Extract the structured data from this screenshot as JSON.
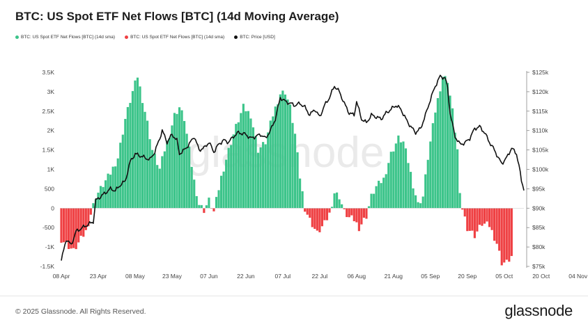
{
  "chart_data": {
    "type": "bar+line",
    "title": "BTC: US Spot ETF Net Flows [BTC] (14d Moving Average)",
    "legend": [
      "BTC: US Spot ETF Net Flows [BTC] (14d sma)",
      "BTC: US Spot ETF Net Flows [BTC] (14d sma)",
      "BTC: Price [USD]"
    ],
    "colors": {
      "positive": "#3cc48a",
      "negative": "#ef4043",
      "price": "#111111"
    },
    "x_ticks": [
      "08 Apr",
      "23 Apr",
      "08 May",
      "23 May",
      "07 Jun",
      "22 Jun",
      "07 Jul",
      "22 Jul",
      "06 Aug",
      "21 Aug",
      "05 Sep",
      "20 Sep",
      "05 Oct",
      "20 Oct",
      "04 Nov"
    ],
    "y_left": {
      "ticks": [
        "3.5K",
        "3K",
        "2.5K",
        "2K",
        "1.5K",
        "1K",
        "500",
        "0",
        "-500",
        "-1K",
        "-1.5K"
      ],
      "ylim": [
        -1500,
        3500
      ]
    },
    "y_right": {
      "ticks": [
        "$125k",
        "$120k",
        "$115k",
        "$110k",
        "$105k",
        "$100k",
        "$95k",
        "$90k",
        "$85k",
        "$80k",
        "$75k"
      ],
      "ylim": [
        75000,
        125000
      ]
    },
    "flow_keyframes": [
      [
        0,
        -800
      ],
      [
        5,
        -1100
      ],
      [
        10,
        -600
      ],
      [
        14,
        300
      ],
      [
        17,
        600
      ],
      [
        20,
        900
      ],
      [
        23,
        1300
      ],
      [
        26,
        2300
      ],
      [
        29,
        3000
      ],
      [
        31,
        3400
      ],
      [
        33,
        2800
      ],
      [
        35,
        2200
      ],
      [
        37,
        1500
      ],
      [
        40,
        1000
      ],
      [
        42,
        1500
      ],
      [
        44,
        1900
      ],
      [
        46,
        2400
      ],
      [
        48,
        2600
      ],
      [
        50,
        2300
      ],
      [
        52,
        1500
      ],
      [
        54,
        700
      ],
      [
        56,
        100
      ],
      [
        58,
        -50
      ],
      [
        60,
        200
      ],
      [
        62,
        -100
      ],
      [
        63,
        200
      ],
      [
        65,
        800
      ],
      [
        68,
        1500
      ],
      [
        71,
        2100
      ],
      [
        74,
        2600
      ],
      [
        77,
        2400
      ],
      [
        80,
        1500
      ],
      [
        83,
        1700
      ],
      [
        86,
        2400
      ],
      [
        89,
        2950
      ],
      [
        91,
        3000
      ],
      [
        93,
        2600
      ],
      [
        95,
        1900
      ],
      [
        97,
        800
      ],
      [
        99,
        0
      ],
      [
        101,
        -300
      ],
      [
        104,
        -650
      ],
      [
        107,
        -400
      ],
      [
        109,
        -150
      ],
      [
        111,
        400
      ],
      [
        113,
        300
      ],
      [
        115,
        -100
      ],
      [
        117,
        -250
      ],
      [
        119,
        -300
      ],
      [
        121,
        -500
      ],
      [
        124,
        -200
      ],
      [
        126,
        300
      ],
      [
        128,
        550
      ],
      [
        131,
        750
      ],
      [
        134,
        1400
      ],
      [
        137,
        1800
      ],
      [
        139,
        1700
      ],
      [
        141,
        1200
      ],
      [
        143,
        600
      ],
      [
        145,
        100
      ],
      [
        147,
        300
      ],
      [
        149,
        1300
      ],
      [
        152,
        2500
      ],
      [
        155,
        3400
      ],
      [
        157,
        3300
      ],
      [
        159,
        2500
      ],
      [
        161,
        1500
      ],
      [
        162,
        300
      ],
      [
        163,
        0
      ],
      [
        165,
        -500
      ],
      [
        168,
        -700
      ],
      [
        171,
        -400
      ],
      [
        174,
        -450
      ],
      [
        177,
        -900
      ],
      [
        179,
        -1400
      ],
      [
        181,
        -1400
      ],
      [
        183,
        -1250
      ]
    ],
    "price_keyframes": [
      [
        0,
        76500
      ],
      [
        2,
        82000
      ],
      [
        4,
        80500
      ],
      [
        6,
        84000
      ],
      [
        10,
        85500
      ],
      [
        13,
        86500
      ],
      [
        14,
        92000
      ],
      [
        16,
        93000
      ],
      [
        18,
        94000
      ],
      [
        20,
        95000
      ],
      [
        22,
        94500
      ],
      [
        24,
        96000
      ],
      [
        26,
        97000
      ],
      [
        28,
        102000
      ],
      [
        30,
        104000
      ],
      [
        32,
        103500
      ],
      [
        34,
        103000
      ],
      [
        36,
        102500
      ],
      [
        38,
        104500
      ],
      [
        40,
        108000
      ],
      [
        41,
        110000
      ],
      [
        43,
        107000
      ],
      [
        45,
        109000
      ],
      [
        47,
        107500
      ],
      [
        48,
        104000
      ],
      [
        50,
        105000
      ],
      [
        52,
        106500
      ],
      [
        54,
        108500
      ],
      [
        56,
        105000
      ],
      [
        58,
        105500
      ],
      [
        60,
        107000
      ],
      [
        62,
        104500
      ],
      [
        64,
        106500
      ],
      [
        66,
        107500
      ],
      [
        68,
        107000
      ],
      [
        70,
        108500
      ],
      [
        72,
        109500
      ],
      [
        75,
        109000
      ],
      [
        77,
        108000
      ],
      [
        79,
        108500
      ],
      [
        81,
        109000
      ],
      [
        83,
        108000
      ],
      [
        85,
        110000
      ],
      [
        87,
        113000
      ],
      [
        89,
        118500
      ],
      [
        91,
        117500
      ],
      [
        93,
        117000
      ],
      [
        95,
        116500
      ],
      [
        97,
        117000
      ],
      [
        99,
        116000
      ],
      [
        101,
        114000
      ],
      [
        103,
        115500
      ],
      [
        105,
        113500
      ],
      [
        107,
        116500
      ],
      [
        109,
        118500
      ],
      [
        111,
        121500
      ],
      [
        113,
        120000
      ],
      [
        115,
        117000
      ],
      [
        117,
        114500
      ],
      [
        119,
        114000
      ],
      [
        120,
        117500
      ],
      [
        122,
        113000
      ],
      [
        124,
        112000
      ],
      [
        126,
        114000
      ],
      [
        128,
        113500
      ],
      [
        130,
        113000
      ],
      [
        132,
        114500
      ],
      [
        134,
        115500
      ],
      [
        136,
        116500
      ],
      [
        138,
        115500
      ],
      [
        140,
        113000
      ],
      [
        142,
        111000
      ],
      [
        144,
        109500
      ],
      [
        146,
        110500
      ],
      [
        148,
        114000
      ],
      [
        150,
        118000
      ],
      [
        152,
        121500
      ],
      [
        154,
        124000
      ],
      [
        156,
        123500
      ],
      [
        157,
        121000
      ],
      [
        158,
        114500
      ],
      [
        159,
        111500
      ],
      [
        160,
        108500
      ],
      [
        162,
        106500
      ],
      [
        164,
        106800
      ],
      [
        166,
        108000
      ],
      [
        168,
        110500
      ],
      [
        170,
        111000
      ],
      [
        172,
        109500
      ],
      [
        174,
        107000
      ],
      [
        176,
        105000
      ],
      [
        178,
        102500
      ],
      [
        179,
        101500
      ],
      [
        181,
        103000
      ],
      [
        183,
        105500
      ],
      [
        185,
        104000
      ],
      [
        186,
        101000
      ],
      [
        187,
        97000
      ],
      [
        188,
        95000
      ]
    ]
  },
  "footer": {
    "copyright": "© 2025 Glassnode. All Rights Reserved.",
    "brand": "glassnode"
  },
  "watermark": "glassnode"
}
